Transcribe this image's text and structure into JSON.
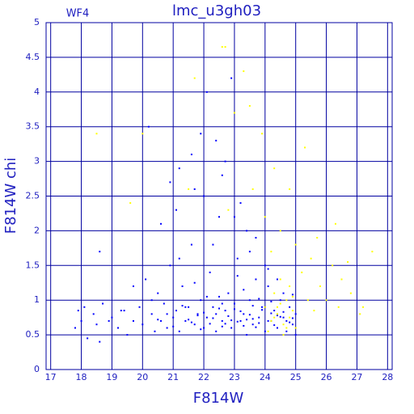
{
  "chart_data": {
    "type": "scatter",
    "title": "lmc_u3gh03",
    "annotation": "WF4",
    "x_label": "F814W",
    "y_label": "F814W chi",
    "xlim": [
      16.85,
      28.15
    ],
    "xticks": [
      17,
      18,
      19,
      20,
      21,
      22,
      23,
      24,
      25,
      26,
      27,
      28
    ],
    "ylim": [
      0,
      5
    ],
    "yticks": [
      0,
      0.5,
      1,
      1.5,
      2,
      2.5,
      3,
      3.5,
      4,
      4.5,
      5
    ],
    "grid": true,
    "grid_color": "#0000a0",
    "series": [
      {
        "color": "#0000ff",
        "x": [
          17.8,
          17.9,
          18.0,
          18.1,
          18.2,
          18.4,
          18.5,
          18.7,
          18.6,
          19.0,
          19.2,
          19.4,
          19.5,
          19.7,
          19.9,
          20.0,
          20.1,
          20.3,
          20.4,
          20.5,
          20.6,
          20.7,
          20.8,
          20.9,
          21.0,
          21.1,
          21.2,
          21.3,
          21.4,
          21.5,
          21.6,
          21.7,
          21.8,
          21.9,
          22.0,
          22.1,
          22.1,
          22.2,
          22.3,
          22.4,
          22.5,
          22.6,
          22.7,
          22.8,
          22.9,
          23.0,
          23.1,
          23.2,
          23.3,
          23.4,
          23.5,
          23.6,
          23.7,
          23.8,
          23.9,
          24.0,
          24.1,
          24.2,
          24.3,
          24.4,
          24.5,
          24.6,
          24.7,
          24.8,
          24.9,
          25.0,
          25.0,
          20.9,
          21.2,
          21.6,
          21.7,
          21.9,
          22.4,
          22.6,
          22.9,
          23.2,
          23.4,
          23.7,
          20.2,
          18.6,
          19.7,
          20.6,
          21.1,
          22.0,
          22.3,
          23.0,
          23.5,
          24.0,
          24.4,
          22.7,
          21.5,
          21.6,
          21.8,
          22.0,
          22.2,
          22.3,
          22.5,
          22.6,
          22.8,
          22.9,
          23.1,
          23.2,
          23.3,
          23.5,
          23.6,
          23.8,
          23.9,
          24.1,
          24.2,
          24.3,
          24.5,
          24.6,
          24.8,
          24.9,
          21.3,
          21.9,
          22.4,
          22.7,
          23.0,
          23.4,
          23.7,
          24.0,
          24.4,
          24.7,
          20.5,
          20.8,
          21.0,
          21.4,
          22.1,
          22.6,
          23.3,
          23.8,
          24.2,
          24.6,
          21.7,
          22.5,
          23.1,
          23.6,
          24.1,
          24.9,
          20.3,
          19.3,
          18.9,
          21.2
        ],
        "values": [
          0.6,
          0.85,
          0.7,
          0.9,
          0.45,
          0.8,
          0.65,
          0.95,
          0.4,
          0.75,
          0.6,
          0.85,
          0.5,
          0.7,
          0.9,
          0.65,
          1.3,
          0.8,
          0.55,
          1.1,
          0.7,
          0.95,
          0.6,
          1.5,
          0.75,
          0.85,
          0.55,
          1.2,
          0.7,
          0.9,
          1.8,
          0.65,
          0.8,
          1.0,
          0.6,
          4.0,
          0.75,
          1.4,
          0.9,
          0.55,
          2.2,
          0.7,
          0.85,
          1.1,
          0.6,
          0.95,
          1.6,
          0.7,
          0.8,
          0.5,
          1.0,
          0.65,
          1.3,
          0.75,
          0.9,
          0.55,
          1.2,
          0.7,
          0.85,
          0.6,
          1.0,
          0.75,
          0.55,
          0.9,
          0.65,
          0.8,
          0.5,
          2.7,
          2.9,
          3.1,
          2.6,
          3.4,
          3.3,
          2.8,
          4.2,
          2.4,
          2.0,
          1.9,
          3.5,
          1.7,
          1.2,
          2.1,
          2.3,
          2.5,
          1.8,
          2.2,
          1.7,
          1.5,
          1.3,
          3.0,
          0.72,
          0.68,
          0.78,
          0.82,
          0.66,
          0.74,
          0.88,
          0.62,
          0.77,
          0.71,
          0.69,
          0.84,
          0.63,
          0.79,
          0.73,
          0.67,
          0.86,
          0.7,
          0.81,
          0.64,
          0.76,
          0.83,
          0.68,
          0.74,
          0.92,
          0.58,
          0.8,
          0.66,
          0.87,
          0.72,
          0.61,
          0.9,
          0.78,
          0.7,
          0.72,
          0.8,
          0.62,
          0.9,
          1.05,
          0.95,
          1.15,
          1.02,
          0.98,
          1.1,
          1.25,
          1.05,
          1.35,
          0.92,
          1.45,
          1.08,
          1.0,
          0.85,
          0.7,
          1.6
        ],
        "marker_size": 2
      },
      {
        "color": "#ffff00",
        "x": [
          24.0,
          24.2,
          24.3,
          24.4,
          24.5,
          24.6,
          24.7,
          24.8,
          24.9,
          25.0,
          24.5,
          24.8,
          24.1,
          24.6,
          25.2,
          25.5,
          25.8,
          26.0,
          26.2,
          26.5,
          26.8,
          27.2,
          27.5,
          26.3,
          25.7,
          25.3,
          24.8,
          24.3,
          23.9,
          23.5,
          23.3,
          22.6,
          22.7,
          21.7,
          23.0,
          24.0,
          24.5,
          25.0,
          25.4,
          26.7,
          27.1,
          18.5,
          20.0,
          19.6,
          21.5,
          22.8,
          23.6,
          24.2,
          25.6,
          26.4,
          24.9,
          24.3,
          24.7,
          24.4
        ],
        "values": [
          0.9,
          0.7,
          1.1,
          0.8,
          0.95,
          0.65,
          1.0,
          0.75,
          0.85,
          0.6,
          1.3,
          1.2,
          0.55,
          0.5,
          1.4,
          1.6,
          1.2,
          1.0,
          1.5,
          1.3,
          1.1,
          0.9,
          1.7,
          2.1,
          1.9,
          3.2,
          2.6,
          2.9,
          3.4,
          3.8,
          4.3,
          4.65,
          4.65,
          4.2,
          3.7,
          2.2,
          2.0,
          1.8,
          1.0,
          1.55,
          0.8,
          3.4,
          3.4,
          2.4,
          2.6,
          2.3,
          2.6,
          1.7,
          0.85,
          0.9,
          1.05,
          0.75,
          0.6,
          0.9
        ],
        "marker_size": 2
      }
    ]
  }
}
